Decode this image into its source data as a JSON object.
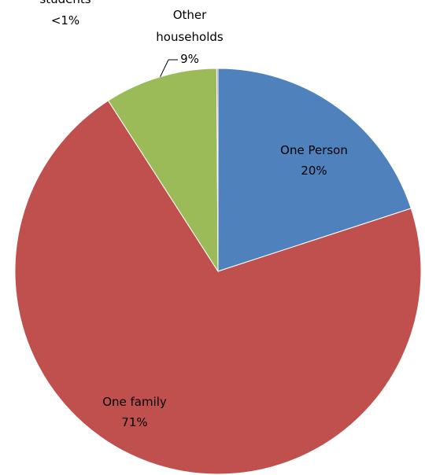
{
  "chart_data": {
    "type": "pie",
    "title": "",
    "start_angle_deg": 0,
    "direction": "clockwise",
    "slices": [
      {
        "label": "One Person",
        "value": 20,
        "value_label": "20%",
        "color": "#4f81bd",
        "label_lines": [
          "One Person",
          "20%"
        ]
      },
      {
        "label": "One family",
        "value": 71,
        "value_label": "71%",
        "color": "#c0504d",
        "label_lines": [
          "One family",
          "71%"
        ]
      },
      {
        "label": "Other households",
        "value": 9,
        "value_label": "9%",
        "color": "#9bbb59",
        "label_lines": [
          "Other",
          "households",
          "9%"
        ]
      },
      {
        "label": "students",
        "value": 0.1,
        "value_label": "<1%",
        "color": "#8064a2",
        "label_lines": [
          "students",
          "<1%"
        ]
      }
    ]
  },
  "decoration": {
    "corner_shape_color": "#b4c4e6",
    "corner_shape_outline": "#8ea6d8"
  }
}
